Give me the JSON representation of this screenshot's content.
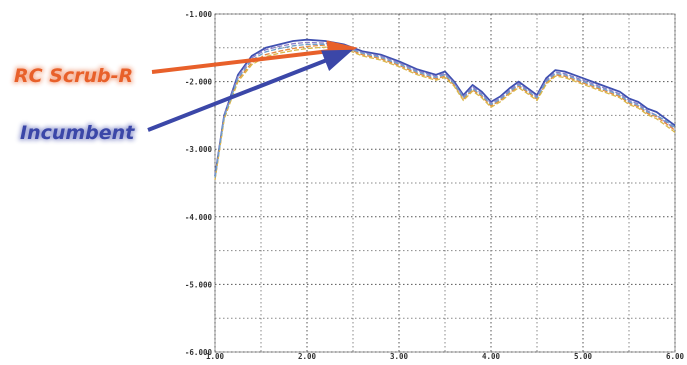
{
  "chart_data": {
    "type": "line",
    "title": "",
    "xlabel": "",
    "ylabel": "",
    "xlim": [
      1.0,
      6.0
    ],
    "ylim": [
      -6.0,
      -1.0
    ],
    "x_ticks": [
      {
        "value": 1.0,
        "label": "1.00"
      },
      {
        "value": 2.0,
        "label": "2.00"
      },
      {
        "value": 3.0,
        "label": "3.00"
      },
      {
        "value": 4.0,
        "label": "4.00"
      },
      {
        "value": 5.0,
        "label": "5.00"
      },
      {
        "value": 6.0,
        "label": "6.00"
      }
    ],
    "y_ticks": [
      {
        "value": -1.0,
        "label": "-1.000"
      },
      {
        "value": -2.0,
        "label": "-2.000"
      },
      {
        "value": -3.0,
        "label": "-3.000"
      },
      {
        "value": -4.0,
        "label": "-4.000"
      },
      {
        "value": -5.0,
        "label": "-5.000"
      },
      {
        "value": -6.0,
        "label": "-6.000"
      }
    ],
    "grid": true,
    "grid_style": "dotted",
    "series": [
      {
        "color": "#3f50b0",
        "x": [
          1.0,
          1.1,
          1.25,
          1.4,
          1.55,
          1.7,
          1.85,
          2.0,
          2.2,
          2.4,
          2.6,
          2.8,
          3.0,
          3.2,
          3.4,
          3.5,
          3.6,
          3.7,
          3.8,
          3.9,
          4.0,
          4.1,
          4.2,
          4.3,
          4.4,
          4.5,
          4.6,
          4.7,
          4.8,
          4.9,
          5.0,
          5.1,
          5.2,
          5.3,
          5.4,
          5.5,
          5.6,
          5.7,
          5.8,
          5.9,
          6.0
        ],
        "y": [
          -3.4,
          -2.5,
          -1.9,
          -1.62,
          -1.5,
          -1.45,
          -1.4,
          -1.38,
          -1.4,
          -1.45,
          -1.55,
          -1.6,
          -1.7,
          -1.82,
          -1.9,
          -1.85,
          -2.0,
          -2.2,
          -2.05,
          -2.15,
          -2.3,
          -2.22,
          -2.1,
          -2.0,
          -2.1,
          -2.2,
          -1.95,
          -1.83,
          -1.85,
          -1.9,
          -1.95,
          -2.0,
          -2.05,
          -2.1,
          -2.15,
          -2.25,
          -2.3,
          -2.4,
          -2.45,
          -2.55,
          -2.65
        ]
      },
      {
        "color": "#8a7ec8",
        "x": [
          1.0,
          1.1,
          1.25,
          1.4,
          1.55,
          1.7,
          1.85,
          2.0,
          2.2,
          2.4,
          2.6,
          2.8,
          3.0,
          3.2,
          3.4,
          3.5,
          3.6,
          3.7,
          3.8,
          3.9,
          4.0,
          4.1,
          4.2,
          4.3,
          4.4,
          4.5,
          4.6,
          4.7,
          4.8,
          4.9,
          5.0,
          5.1,
          5.2,
          5.3,
          5.4,
          5.5,
          5.6,
          5.7,
          5.8,
          5.9,
          6.0
        ],
        "y": [
          -3.4,
          -2.5,
          -1.92,
          -1.65,
          -1.53,
          -1.48,
          -1.44,
          -1.42,
          -1.43,
          -1.47,
          -1.57,
          -1.62,
          -1.72,
          -1.84,
          -1.92,
          -1.88,
          -2.02,
          -2.22,
          -2.08,
          -2.18,
          -2.32,
          -2.24,
          -2.13,
          -2.03,
          -2.12,
          -2.22,
          -1.98,
          -1.86,
          -1.88,
          -1.93,
          -1.98,
          -2.03,
          -2.08,
          -2.13,
          -2.18,
          -2.28,
          -2.33,
          -2.43,
          -2.5,
          -2.6,
          -2.7
        ]
      },
      {
        "color": "#e48a40",
        "x": [
          1.0,
          1.1,
          1.25,
          1.4,
          1.55,
          1.7,
          1.85,
          2.0,
          2.2,
          2.4,
          2.6,
          2.8,
          3.0,
          3.2,
          3.4,
          3.5,
          3.6,
          3.7,
          3.8,
          3.9,
          4.0,
          4.1,
          4.2,
          4.3,
          4.4,
          4.5,
          4.6,
          4.7,
          4.8,
          4.9,
          5.0,
          5.1,
          5.2,
          5.3,
          5.4,
          5.5,
          5.6,
          5.7,
          5.8,
          5.9,
          6.0
        ],
        "y": [
          -3.45,
          -2.55,
          -1.97,
          -1.72,
          -1.6,
          -1.55,
          -1.51,
          -1.48,
          -1.46,
          -1.49,
          -1.6,
          -1.66,
          -1.76,
          -1.88,
          -1.96,
          -1.92,
          -2.05,
          -2.26,
          -2.12,
          -2.22,
          -2.36,
          -2.28,
          -2.17,
          -2.07,
          -2.16,
          -2.26,
          -2.02,
          -1.9,
          -1.92,
          -1.97,
          -2.02,
          -2.07,
          -2.12,
          -2.17,
          -2.22,
          -2.32,
          -2.37,
          -2.47,
          -2.52,
          -2.62,
          -2.72
        ]
      },
      {
        "color": "#d9b84a",
        "x": [
          1.0,
          1.1,
          1.25,
          1.4,
          1.55,
          1.7,
          1.85,
          2.0,
          2.2,
          2.4,
          2.6,
          2.8,
          3.0,
          3.2,
          3.4,
          3.5,
          3.6,
          3.7,
          3.8,
          3.9,
          4.0,
          4.1,
          4.2,
          4.3,
          4.4,
          4.5,
          4.6,
          4.7,
          4.8,
          4.9,
          5.0,
          5.1,
          5.2,
          5.3,
          5.4,
          5.5,
          5.6,
          5.7,
          5.8,
          5.9,
          6.0
        ],
        "y": [
          -3.45,
          -2.55,
          -2.0,
          -1.75,
          -1.63,
          -1.58,
          -1.54,
          -1.51,
          -1.49,
          -1.51,
          -1.62,
          -1.68,
          -1.78,
          -1.9,
          -1.98,
          -1.94,
          -2.07,
          -2.28,
          -2.14,
          -2.24,
          -2.38,
          -2.3,
          -2.19,
          -2.09,
          -2.18,
          -2.28,
          -2.04,
          -1.92,
          -1.94,
          -1.99,
          -2.04,
          -2.09,
          -2.14,
          -2.19,
          -2.24,
          -2.34,
          -2.39,
          -2.49,
          -2.55,
          -2.65,
          -2.75
        ]
      },
      {
        "color": "#6fa0c8",
        "x": [
          1.0,
          1.1,
          1.25,
          1.4,
          1.55,
          1.7,
          1.85,
          2.0,
          2.2,
          2.4,
          2.6,
          2.8,
          3.0,
          3.2,
          3.4,
          3.5,
          3.6,
          3.7,
          3.8,
          3.9,
          4.0,
          4.1,
          4.2,
          4.3,
          4.4,
          4.5,
          4.6,
          4.7,
          4.8,
          4.9,
          5.0,
          5.1,
          5.2,
          5.3,
          5.4,
          5.5,
          5.6,
          5.7,
          5.8,
          5.9,
          6.0
        ],
        "y": [
          -3.42,
          -2.52,
          -1.95,
          -1.68,
          -1.56,
          -1.51,
          -1.47,
          -1.45,
          -1.45,
          -1.48,
          -1.58,
          -1.64,
          -1.74,
          -1.86,
          -1.94,
          -1.9,
          -2.03,
          -2.24,
          -2.1,
          -2.2,
          -2.34,
          -2.26,
          -2.15,
          -2.05,
          -2.14,
          -2.24,
          -2.0,
          -1.88,
          -1.9,
          -1.95,
          -2.0,
          -2.05,
          -2.1,
          -2.15,
          -2.2,
          -2.3,
          -2.35,
          -2.45,
          -2.5,
          -2.58,
          -2.68
        ]
      }
    ],
    "annotations": [
      {
        "text": "RC Scrub-R",
        "color": "#e8602a",
        "arrow_to": {
          "x": 2.55,
          "y": -1.5
        }
      },
      {
        "text": "Incumbent",
        "color": "#3b47a8",
        "arrow_to": {
          "x": 2.5,
          "y": -1.53
        }
      }
    ]
  }
}
